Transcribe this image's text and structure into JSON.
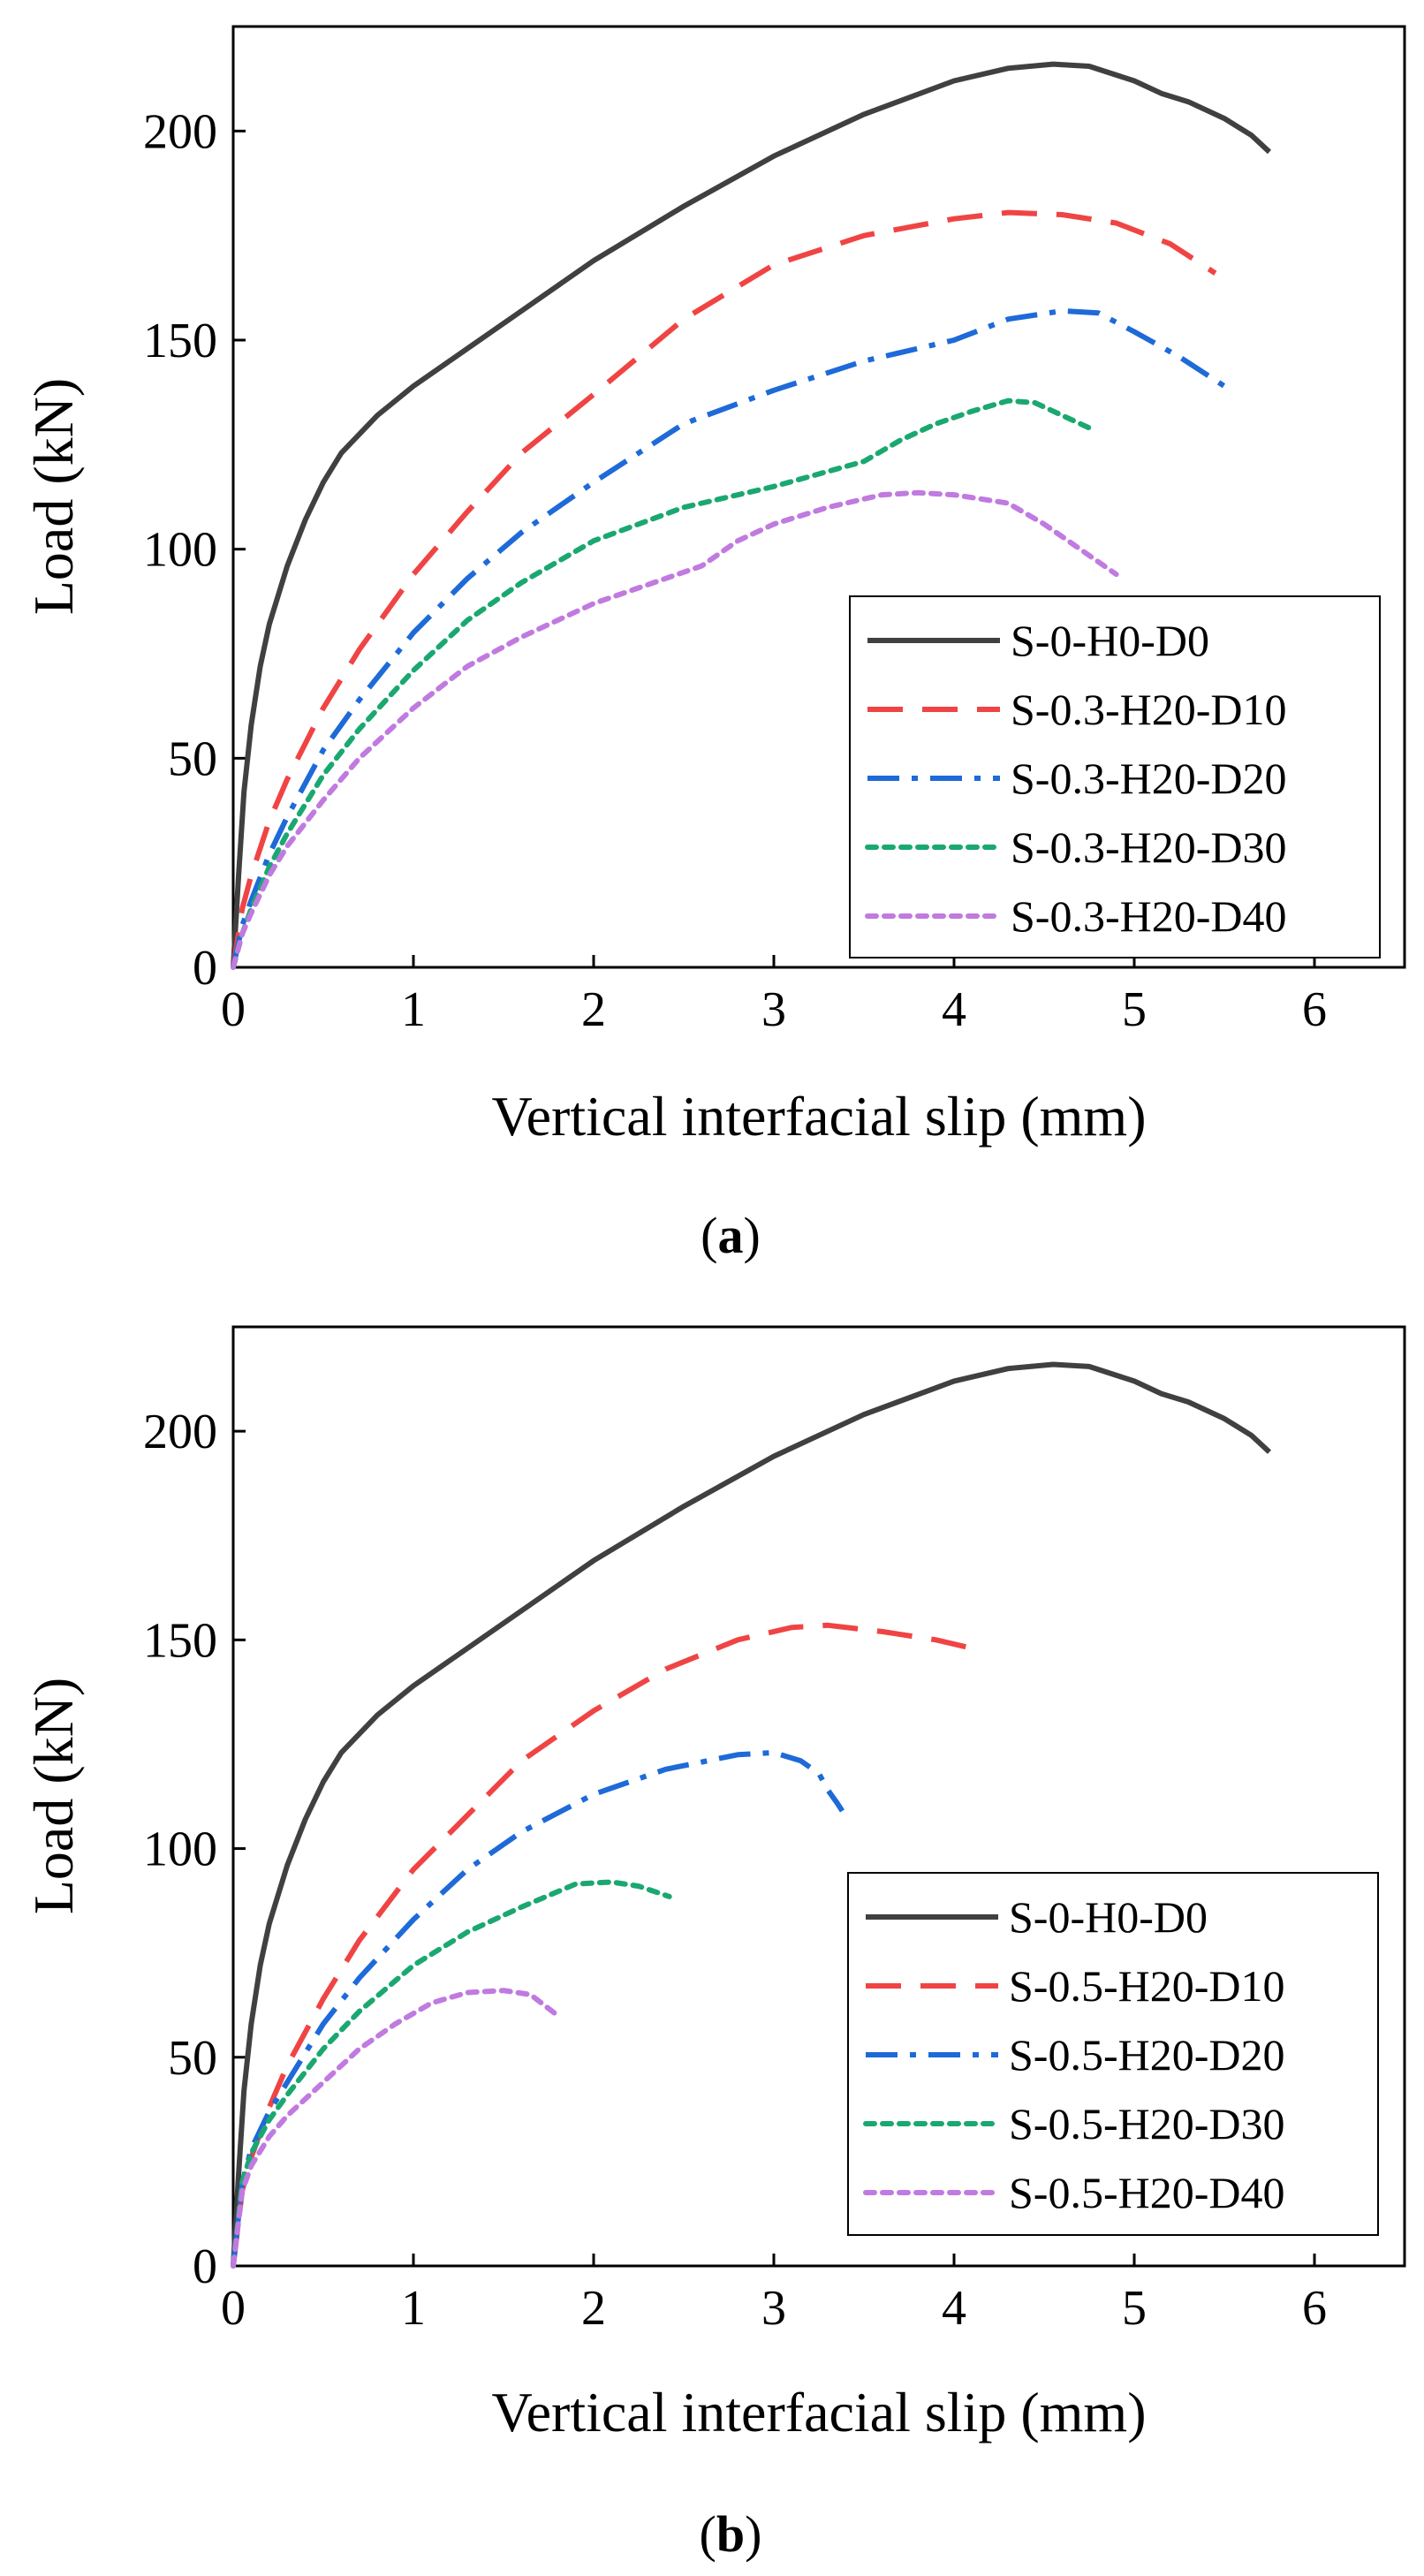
{
  "figure": {
    "panels": [
      {
        "label_open": "(",
        "label_letter": "a",
        "label_close": ")"
      },
      {
        "label_open": "(",
        "label_letter": "b",
        "label_close": ")"
      }
    ]
  },
  "chart_data": [
    {
      "type": "line",
      "panel": "a",
      "title": "",
      "xlabel": "Vertical interfacial slip (mm)",
      "ylabel": "Load (kN)",
      "xlim": [
        0,
        6.5
      ],
      "ylim": [
        0,
        225
      ],
      "xticks": [
        0,
        1,
        2,
        3,
        4,
        5,
        6
      ],
      "yticks": [
        0,
        50,
        100,
        150,
        200
      ],
      "legend_position": "bottom-right",
      "series": [
        {
          "name": "S-0-H0-D0",
          "color": "#404040",
          "dash": "solid",
          "x": [
            0,
            0.03,
            0.06,
            0.1,
            0.15,
            0.2,
            0.3,
            0.4,
            0.5,
            0.6,
            0.8,
            1.0,
            1.3,
            1.6,
            2.0,
            2.5,
            3.0,
            3.5,
            4.0,
            4.3,
            4.55,
            4.75,
            5.0,
            5.15,
            5.3,
            5.5,
            5.65,
            5.75
          ],
          "y": [
            0,
            22,
            42,
            58,
            72,
            82,
            96,
            107,
            116,
            123,
            132,
            139,
            148,
            157,
            169,
            182,
            194,
            204,
            212,
            215,
            216,
            215.5,
            212,
            209,
            207,
            203,
            199,
            195
          ]
        },
        {
          "name": "S-0.3-H20-D10",
          "color": "#f04444",
          "dash": "dashed",
          "x": [
            0,
            0.05,
            0.1,
            0.2,
            0.3,
            0.5,
            0.7,
            1.0,
            1.3,
            1.6,
            2.0,
            2.5,
            3.0,
            3.5,
            4.0,
            4.3,
            4.6,
            4.9,
            5.2,
            5.45
          ],
          "y": [
            0,
            14,
            22,
            35,
            45,
            62,
            76,
            94,
            109,
            123,
            137,
            155,
            168,
            175,
            179,
            180.5,
            180,
            178,
            173,
            166
          ]
        },
        {
          "name": "S-0.3-H20-D20",
          "color": "#1e6ad8",
          "dash": "dashdot",
          "x": [
            0,
            0.05,
            0.1,
            0.2,
            0.3,
            0.5,
            0.7,
            1.0,
            1.3,
            1.6,
            2.0,
            2.5,
            3.0,
            3.5,
            4.0,
            4.3,
            4.6,
            4.8,
            5.0,
            5.25,
            5.5
          ],
          "y": [
            0,
            10,
            16,
            27,
            36,
            52,
            64,
            80,
            93,
            104,
            116,
            130,
            138,
            145,
            150,
            155,
            157,
            156.5,
            152,
            146,
            139
          ]
        },
        {
          "name": "S-0.3-H20-D30",
          "color": "#1aa870",
          "dash": "dotted",
          "x": [
            0,
            0.05,
            0.1,
            0.2,
            0.3,
            0.5,
            0.7,
            1.0,
            1.3,
            1.6,
            2.0,
            2.5,
            3.0,
            3.5,
            3.7,
            3.9,
            4.1,
            4.3,
            4.45,
            4.6,
            4.75
          ],
          "y": [
            0,
            8,
            14,
            24,
            32,
            46,
            57,
            71,
            83,
            92,
            102,
            110,
            115,
            121,
            126,
            130,
            133,
            135.5,
            135,
            132,
            129
          ]
        },
        {
          "name": "S-0.3-H20-D40",
          "color": "#c07ae0",
          "dash": "dotted",
          "x": [
            0,
            0.05,
            0.1,
            0.2,
            0.3,
            0.5,
            0.7,
            1.0,
            1.3,
            1.6,
            2.0,
            2.4,
            2.6,
            2.8,
            3.0,
            3.3,
            3.6,
            3.8,
            4.0,
            4.3,
            4.5,
            4.7,
            4.9
          ],
          "y": [
            0,
            8,
            13,
            22,
            29,
            40,
            50,
            62,
            72,
            79,
            87,
            93,
            96,
            102,
            106,
            110,
            113,
            113.5,
            113,
            111,
            106,
            100,
            94
          ]
        }
      ]
    },
    {
      "type": "line",
      "panel": "b",
      "title": "",
      "xlabel": "Vertical interfacial slip (mm)",
      "ylabel": "Load (kN)",
      "xlim": [
        0,
        6.5
      ],
      "ylim": [
        0,
        225
      ],
      "xticks": [
        0,
        1,
        2,
        3,
        4,
        5,
        6
      ],
      "yticks": [
        0,
        50,
        100,
        150,
        200
      ],
      "legend_position": "bottom-right",
      "series": [
        {
          "name": "S-0-H0-D0",
          "color": "#404040",
          "dash": "solid",
          "x": [
            0,
            0.03,
            0.06,
            0.1,
            0.15,
            0.2,
            0.3,
            0.4,
            0.5,
            0.6,
            0.8,
            1.0,
            1.3,
            1.6,
            2.0,
            2.5,
            3.0,
            3.5,
            4.0,
            4.3,
            4.55,
            4.75,
            5.0,
            5.15,
            5.3,
            5.5,
            5.65,
            5.75
          ],
          "y": [
            0,
            22,
            42,
            58,
            72,
            82,
            96,
            107,
            116,
            123,
            132,
            139,
            148,
            157,
            169,
            182,
            194,
            204,
            212,
            215,
            216,
            215.5,
            212,
            209,
            207,
            203,
            199,
            195
          ]
        },
        {
          "name": "S-0.5-H20-D10",
          "color": "#f04444",
          "dash": "dashed",
          "x": [
            0,
            0.05,
            0.1,
            0.2,
            0.3,
            0.5,
            0.7,
            1.0,
            1.3,
            1.6,
            2.0,
            2.4,
            2.8,
            3.1,
            3.3,
            3.6,
            3.9,
            4.1
          ],
          "y": [
            0,
            18,
            26,
            38,
            48,
            64,
            78,
            95,
            108,
            121,
            133,
            143,
            150,
            153,
            153.5,
            152,
            150,
            148
          ]
        },
        {
          "name": "S-0.5-H20-D20",
          "color": "#1e6ad8",
          "dash": "dashdot",
          "x": [
            0,
            0.05,
            0.1,
            0.2,
            0.3,
            0.5,
            0.7,
            1.0,
            1.3,
            1.6,
            2.0,
            2.4,
            2.8,
            3.0,
            3.15,
            3.25,
            3.3,
            3.35,
            3.38
          ],
          "y": [
            0,
            20,
            28,
            37,
            44,
            58,
            69,
            83,
            95,
            104,
            113,
            119,
            122.5,
            123,
            121,
            118,
            114,
            111,
            109
          ]
        },
        {
          "name": "S-0.5-H20-D30",
          "color": "#1aa870",
          "dash": "dotted",
          "x": [
            0,
            0.05,
            0.1,
            0.2,
            0.3,
            0.5,
            0.7,
            1.0,
            1.3,
            1.6,
            1.9,
            2.1,
            2.25,
            2.42
          ],
          "y": [
            0,
            20,
            27,
            35,
            41,
            52,
            61,
            72,
            80,
            86,
            91.5,
            92,
            91,
            88.5
          ]
        },
        {
          "name": "S-0.5-H20-D40",
          "color": "#c07ae0",
          "dash": "dotted",
          "x": [
            0,
            0.05,
            0.1,
            0.2,
            0.3,
            0.5,
            0.7,
            0.9,
            1.1,
            1.3,
            1.5,
            1.65,
            1.8
          ],
          "y": [
            0,
            18,
            24,
            31,
            36,
            44,
            52,
            58,
            63,
            65.5,
            66,
            65,
            60
          ]
        }
      ]
    }
  ]
}
